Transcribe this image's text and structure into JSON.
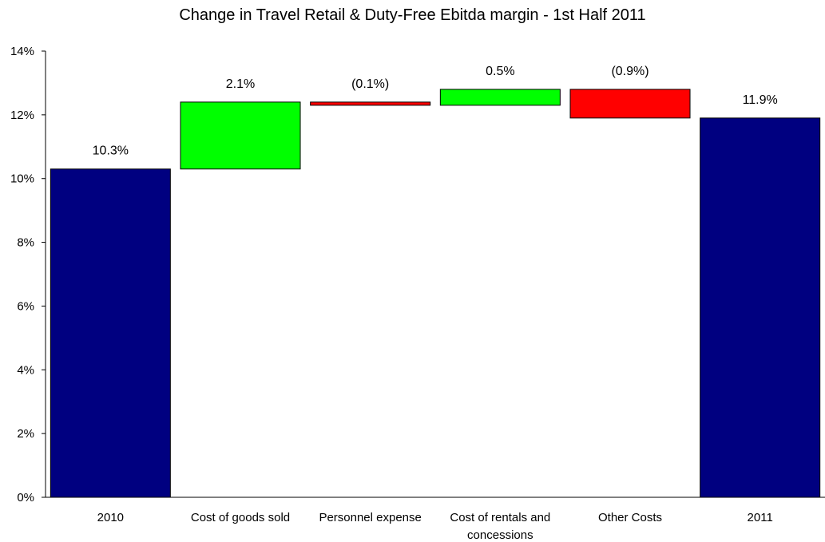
{
  "chart_data": {
    "type": "bar",
    "subtype": "waterfall",
    "title": "Change in Travel Retail & Duty-Free Ebitda margin - 1st Half 2011",
    "xlabel": "",
    "ylabel": "",
    "ylim": [
      0,
      14
    ],
    "y_ticks": [
      "0%",
      "2%",
      "4%",
      "6%",
      "8%",
      "10%",
      "12%",
      "14%"
    ],
    "y_tick_values": [
      0,
      2,
      4,
      6,
      8,
      10,
      12,
      14
    ],
    "grid": false,
    "legend": "none",
    "categories": [
      [
        "2010"
      ],
      [
        "Cost of goods sold"
      ],
      [
        "Personnel expense"
      ],
      [
        "Cost of rentals and",
        "concessions"
      ],
      [
        "Other Costs"
      ],
      [
        "2011"
      ]
    ],
    "bars": [
      {
        "kind": "total",
        "start": 0,
        "end": 10.3,
        "value": 10.3,
        "label": "10.3%"
      },
      {
        "kind": "increase",
        "start": 10.3,
        "end": 12.4,
        "value": 2.1,
        "label": "2.1%"
      },
      {
        "kind": "decrease",
        "start": 12.4,
        "end": 12.3,
        "value": -0.1,
        "label": "(0.1%)"
      },
      {
        "kind": "increase",
        "start": 12.3,
        "end": 12.8,
        "value": 0.5,
        "label": "0.5%"
      },
      {
        "kind": "decrease",
        "start": 12.8,
        "end": 11.9,
        "value": -0.9,
        "label": "(0.9%)"
      },
      {
        "kind": "total",
        "start": 0,
        "end": 11.9,
        "value": 11.9,
        "label": "11.9%"
      }
    ],
    "colors": {
      "total": "#000080",
      "increase": "#00ff00",
      "decrease": "#ff0000",
      "personnel": "#00ff00"
    }
  }
}
